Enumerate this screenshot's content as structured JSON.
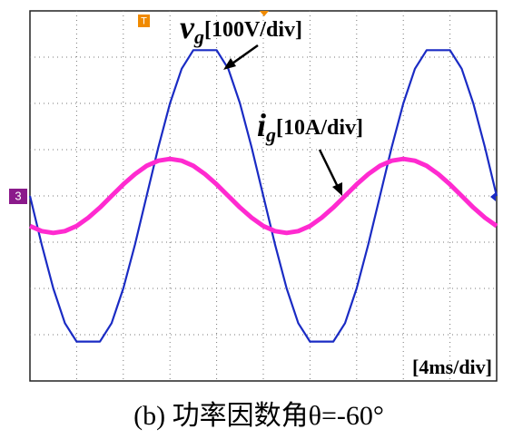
{
  "chart_data": {
    "type": "line",
    "annotations": [
      {
        "symbol": "v",
        "subscript": "g",
        "scale": "[100V/div]"
      },
      {
        "symbol": "i",
        "subscript": "g",
        "scale": "[10A/div]"
      }
    ],
    "time_scale": "[4ms/div]",
    "channel_marker": "3",
    "trigger_marker": "T",
    "caption": "(b)  功率因数角θ=-60°",
    "x": [
      0,
      1,
      2,
      3,
      4,
      5,
      6,
      7,
      8,
      9,
      10,
      11,
      12,
      13,
      14,
      15,
      16,
      17,
      18,
      19,
      20,
      21,
      22,
      23,
      24,
      25,
      26,
      27,
      28,
      29,
      30,
      31,
      32,
      33,
      34,
      35,
      36,
      37,
      38,
      39,
      40
    ],
    "xlim": [
      0,
      40
    ],
    "ylim": [
      -4,
      4
    ],
    "series": [
      {
        "color": "#1a2bc4",
        "values": [
          0,
          -1.05,
          -2.0,
          -2.75,
          -3.15,
          -3.15,
          -3.15,
          -2.75,
          -2.0,
          -1.05,
          0,
          1.05,
          2.0,
          2.75,
          3.15,
          3.15,
          3.15,
          2.75,
          2.0,
          1.05,
          0,
          -1.05,
          -2.0,
          -2.75,
          -3.15,
          -3.15,
          -3.15,
          -2.75,
          -2.0,
          -1.05,
          0,
          1.05,
          2.0,
          2.75,
          3.15,
          3.15,
          3.15,
          2.75,
          2.0,
          1.05,
          0
        ]
      },
      {
        "color": "#ff2ad0",
        "values": [
          -0.65,
          -0.76,
          -0.8,
          -0.76,
          -0.65,
          -0.47,
          -0.25,
          0,
          0.25,
          0.47,
          0.65,
          0.76,
          0.8,
          0.76,
          0.65,
          0.47,
          0.25,
          0,
          -0.25,
          -0.47,
          -0.65,
          -0.76,
          -0.8,
          -0.76,
          -0.65,
          -0.47,
          -0.25,
          0,
          0.25,
          0.47,
          0.65,
          0.76,
          0.8,
          0.76,
          0.65,
          0.47,
          0.25,
          0,
          -0.25,
          -0.47,
          -0.65
        ]
      }
    ]
  }
}
